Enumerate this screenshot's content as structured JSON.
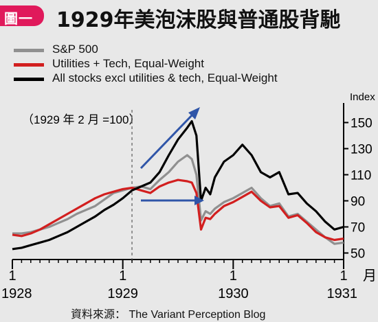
{
  "header": {
    "badge": "圖一",
    "title": "1929年美泡沫股與普通股背馳"
  },
  "colors": {
    "sp500": "#909090",
    "util_tech": "#d21f1f",
    "all_stocks": "#000000",
    "arrow": "#2f55a8",
    "badge": "#e0195b"
  },
  "chart_data": {
    "type": "line",
    "annotation": "（1929 年 2 月 =100）",
    "y_unit_label": "Index",
    "x_unit_label": "月",
    "ylim": [
      45,
      165
    ],
    "y_ticks": [
      50,
      70,
      90,
      110,
      130,
      150
    ],
    "x_ticks": [
      {
        "x": 0,
        "month": "1",
        "year": "1928"
      },
      {
        "x": 12,
        "month": "1",
        "year": "1929"
      },
      {
        "x": 24,
        "month": "1",
        "year": "1930"
      },
      {
        "x": 36,
        "month": "1",
        "year": "1931"
      }
    ],
    "vline_x": 13,
    "series": [
      {
        "name": "S&P 500",
        "x": [
          0,
          1,
          2,
          3,
          4,
          5,
          6,
          7,
          8,
          9,
          10,
          11,
          12,
          13,
          14,
          15,
          16,
          17,
          18,
          19,
          19.5,
          20,
          20.5,
          21,
          21.5,
          22,
          23,
          24,
          25,
          26,
          27,
          28,
          29,
          30,
          31,
          32,
          33,
          34,
          35,
          36
        ],
        "values": [
          65,
          65,
          66,
          68,
          70,
          73,
          76,
          80,
          83,
          86,
          91,
          96,
          98,
          100,
          101,
          99,
          106,
          112,
          120,
          125,
          122,
          110,
          75,
          82,
          80,
          84,
          89,
          92,
          96,
          100,
          92,
          86,
          88,
          78,
          80,
          74,
          68,
          62,
          57,
          58
        ]
      },
      {
        "name": "Utilities + Tech, Equal-Weight",
        "x": [
          0,
          1,
          2,
          3,
          4,
          5,
          6,
          7,
          8,
          9,
          10,
          11,
          12,
          13,
          14,
          15,
          16,
          17,
          18,
          19,
          19.5,
          20,
          20.5,
          21,
          21.5,
          22,
          23,
          24,
          25,
          26,
          27,
          28,
          29,
          30,
          31,
          32,
          33,
          34,
          35,
          36
        ],
        "values": [
          64,
          63,
          65,
          68,
          72,
          76,
          80,
          84,
          88,
          92,
          95,
          97,
          99,
          100,
          98,
          96,
          101,
          104,
          106,
          105,
          104,
          96,
          68,
          77,
          76,
          80,
          86,
          89,
          93,
          97,
          90,
          85,
          86,
          77,
          79,
          73,
          66,
          62,
          60,
          61
        ]
      },
      {
        "name": "All stocks excl utilities & tech, Equal-Weight",
        "x": [
          0,
          1,
          2,
          3,
          4,
          5,
          6,
          7,
          8,
          9,
          10,
          11,
          12,
          13,
          14,
          15,
          16,
          17,
          18,
          19,
          19.5,
          20,
          20.5,
          21,
          21.5,
          22,
          23,
          24,
          25,
          26,
          27,
          28,
          29,
          30,
          31,
          32,
          33,
          34,
          35,
          36
        ],
        "values": [
          53,
          54,
          56,
          58,
          60,
          63,
          66,
          70,
          74,
          78,
          83,
          87,
          92,
          98,
          101,
          104,
          112,
          125,
          137,
          146,
          151,
          140,
          90,
          100,
          95,
          108,
          120,
          125,
          133,
          125,
          112,
          108,
          112,
          95,
          96,
          88,
          82,
          74,
          68,
          70
        ]
      }
    ]
  },
  "source": "資料來源： The Variant Perception Blog"
}
